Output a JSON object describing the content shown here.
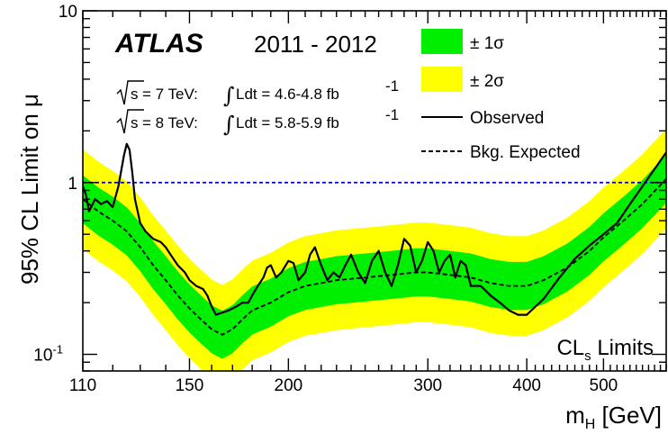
{
  "chart_data": {
    "type": "line",
    "experiment": "ATLAS",
    "years": "2011 - 2012",
    "lumi_7": {
      "energy": "= 7 TeV:",
      "integral": "Ldt = 4.6-4.8 fb",
      "exponent": "-1"
    },
    "lumi_8": {
      "energy": "= 8 TeV:",
      "integral": "Ldt = 5.8-5.9 fb",
      "exponent": "-1"
    },
    "ylabel": "95% CL Limit on μ",
    "xlabel": {
      "main": "m",
      "sub": "H",
      "unit": " [GeV]"
    },
    "annotation": {
      "main": "CL",
      "sub": "s",
      "rest": " Limits"
    },
    "xlim": [
      110,
      600
    ],
    "ylim": [
      0.08,
      10
    ],
    "yscale": "log",
    "xscale": "log",
    "xticks": [
      {
        "value": 110,
        "label": "110"
      },
      {
        "value": 150,
        "label": "150"
      },
      {
        "value": 200,
        "label": "200"
      },
      {
        "value": 300,
        "label": "300"
      },
      {
        "value": 400,
        "label": "400"
      },
      {
        "value": 500,
        "label": "500"
      }
    ],
    "yticks": [
      {
        "value": 0.1,
        "label": "10",
        "exp": "-1"
      },
      {
        "value": 1,
        "label": "1",
        "exp": ""
      },
      {
        "value": 10,
        "label": "10",
        "exp": ""
      }
    ],
    "reference_line": 1,
    "colors": {
      "band1": "#00ee00",
      "band2": "#ffff00",
      "observed": "#000000",
      "expected": "#000000",
      "reference": "#0000cc"
    },
    "legend": {
      "placement": "top-right",
      "items": [
        {
          "key": "band1",
          "label": "± 1σ"
        },
        {
          "key": "band2",
          "label": "± 2σ"
        },
        {
          "key": "observed",
          "label": "Observed"
        },
        {
          "key": "expected",
          "label": "Bkg. Expected"
        }
      ]
    },
    "series": [
      {
        "name": "Observed",
        "x": [
          110,
          111,
          112,
          114,
          116,
          118,
          120,
          122,
          124,
          125,
          126,
          127,
          128,
          130,
          132,
          135,
          138,
          140,
          142,
          145,
          148,
          150,
          153,
          156,
          158,
          160,
          162,
          165,
          168,
          172,
          175,
          178,
          180,
          183,
          186,
          188,
          190,
          193,
          196,
          200,
          203,
          206,
          210,
          213,
          216,
          220,
          224,
          228,
          232,
          236,
          240,
          245,
          250,
          255,
          260,
          265,
          270,
          275,
          280,
          285,
          290,
          295,
          300,
          305,
          310,
          315,
          320,
          325,
          330,
          335,
          340,
          350,
          360,
          370,
          380,
          390,
          400,
          420,
          440,
          460,
          480,
          500,
          520,
          540,
          560,
          580,
          600
        ],
        "y": [
          0.95,
          0.85,
          0.68,
          0.8,
          0.75,
          0.78,
          0.72,
          0.95,
          1.45,
          1.68,
          1.55,
          1.15,
          0.8,
          0.58,
          0.52,
          0.47,
          0.45,
          0.42,
          0.38,
          0.33,
          0.3,
          0.27,
          0.25,
          0.24,
          0.22,
          0.19,
          0.17,
          0.175,
          0.18,
          0.19,
          0.2,
          0.2,
          0.22,
          0.25,
          0.28,
          0.32,
          0.33,
          0.28,
          0.3,
          0.35,
          0.34,
          0.27,
          0.3,
          0.38,
          0.42,
          0.33,
          0.27,
          0.3,
          0.28,
          0.33,
          0.38,
          0.3,
          0.26,
          0.35,
          0.4,
          0.3,
          0.25,
          0.33,
          0.47,
          0.43,
          0.3,
          0.35,
          0.45,
          0.4,
          0.3,
          0.35,
          0.38,
          0.28,
          0.35,
          0.33,
          0.25,
          0.25,
          0.22,
          0.2,
          0.18,
          0.17,
          0.17,
          0.21,
          0.28,
          0.36,
          0.43,
          0.5,
          0.58,
          0.75,
          0.95,
          1.2,
          1.5
        ]
      },
      {
        "name": "Bkg. Expected",
        "x": [
          110,
          115,
          120,
          125,
          130,
          135,
          140,
          145,
          150,
          155,
          160,
          165,
          170,
          175,
          180,
          190,
          200,
          210,
          220,
          230,
          250,
          270,
          290,
          300,
          320,
          340,
          360,
          380,
          400,
          420,
          450,
          480,
          500,
          530,
          560,
          600
        ],
        "y": [
          0.8,
          0.68,
          0.6,
          0.52,
          0.42,
          0.33,
          0.27,
          0.22,
          0.185,
          0.16,
          0.14,
          0.13,
          0.14,
          0.16,
          0.18,
          0.2,
          0.23,
          0.25,
          0.26,
          0.27,
          0.28,
          0.29,
          0.3,
          0.3,
          0.29,
          0.28,
          0.26,
          0.25,
          0.25,
          0.27,
          0.32,
          0.4,
          0.48,
          0.6,
          0.75,
          1.05
        ]
      }
    ],
    "band_factors": {
      "sigma1": 1.38,
      "sigma2": 1.95
    }
  }
}
